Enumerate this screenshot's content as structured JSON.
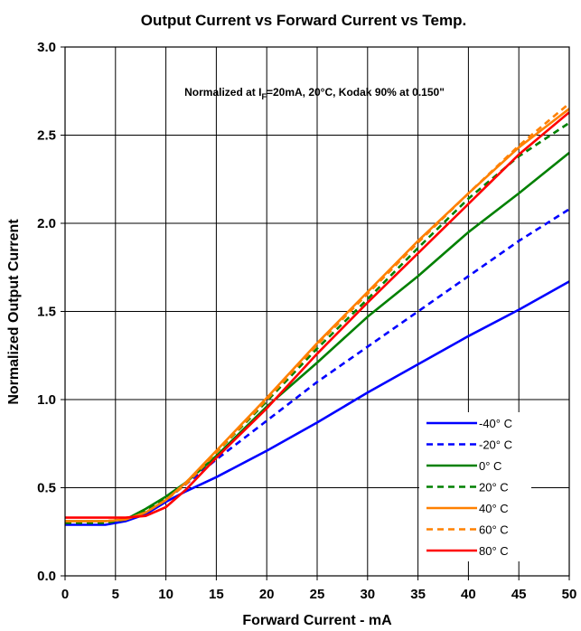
{
  "chart_data": {
    "type": "line",
    "title": "Output Current vs Forward Current vs Temp.",
    "xlabel": "Forward Current - mA",
    "ylabel": "Normalized Output Current",
    "xlim": [
      0,
      50
    ],
    "ylim": [
      0,
      3.0
    ],
    "x_ticks": [
      "0",
      "5",
      "10",
      "15",
      "20",
      "25",
      "30",
      "35",
      "40",
      "45",
      "50"
    ],
    "y_ticks": [
      "0.0",
      "0.5",
      "1.0",
      "1.5",
      "2.0",
      "2.5",
      "3.0"
    ],
    "grid": true,
    "legend_position": "bottom-right",
    "annotation": {
      "prefix": "Normalized at I",
      "subscript": "F",
      "suffix": "=20mA, 20°C, Kodak 90% at 0.150\""
    },
    "series": [
      {
        "name": "-40° C",
        "color": "#0000ff",
        "dash": "solid",
        "x": [
          0,
          2,
          4,
          6,
          8,
          10,
          12,
          15,
          20,
          25,
          30,
          35,
          40,
          45,
          50
        ],
        "y": [
          0.29,
          0.29,
          0.29,
          0.31,
          0.35,
          0.42,
          0.48,
          0.56,
          0.71,
          0.87,
          1.04,
          1.2,
          1.36,
          1.51,
          1.67
        ]
      },
      {
        "name": "-20° C",
        "color": "#0000ff",
        "dash": "dashed",
        "x": [
          0,
          2,
          4,
          6,
          8,
          10,
          12,
          15,
          20,
          25,
          30,
          35,
          40,
          45,
          50
        ],
        "y": [
          0.3,
          0.3,
          0.3,
          0.31,
          0.36,
          0.43,
          0.52,
          0.66,
          0.88,
          1.1,
          1.3,
          1.5,
          1.7,
          1.9,
          2.08
        ]
      },
      {
        "name": "0° C",
        "color": "#008000",
        "dash": "solid",
        "x": [
          0,
          2,
          4,
          6,
          8,
          10,
          12,
          15,
          20,
          25,
          30,
          35,
          40,
          45,
          50
        ],
        "y": [
          0.31,
          0.31,
          0.31,
          0.32,
          0.38,
          0.45,
          0.53,
          0.68,
          0.96,
          1.21,
          1.47,
          1.7,
          1.95,
          2.17,
          2.4
        ]
      },
      {
        "name": "20° C",
        "color": "#008000",
        "dash": "dashed",
        "x": [
          0,
          2,
          4,
          6,
          8,
          10,
          12,
          15,
          20,
          25,
          30,
          35,
          40,
          45,
          50
        ],
        "y": [
          0.3,
          0.3,
          0.3,
          0.32,
          0.37,
          0.44,
          0.53,
          0.7,
          0.99,
          1.29,
          1.57,
          1.86,
          2.14,
          2.38,
          2.57
        ]
      },
      {
        "name": "40° C",
        "color": "#ff8000",
        "dash": "solid",
        "x": [
          0,
          2,
          4,
          6,
          8,
          10,
          12,
          15,
          20,
          25,
          30,
          35,
          40,
          45,
          50
        ],
        "y": [
          0.31,
          0.31,
          0.31,
          0.32,
          0.36,
          0.43,
          0.53,
          0.71,
          1.01,
          1.32,
          1.61,
          1.9,
          2.17,
          2.43,
          2.65
        ]
      },
      {
        "name": "60° C",
        "color": "#ff8000",
        "dash": "dashed",
        "x": [
          0,
          2,
          4,
          6,
          8,
          10,
          12,
          15,
          20,
          25,
          30,
          35,
          40,
          45,
          50
        ],
        "y": [
          0.31,
          0.31,
          0.31,
          0.32,
          0.36,
          0.43,
          0.52,
          0.7,
          1.0,
          1.31,
          1.6,
          1.89,
          2.17,
          2.44,
          2.68
        ]
      },
      {
        "name": "80° C",
        "color": "#ff0000",
        "dash": "solid",
        "x": [
          0,
          2,
          4,
          6,
          8,
          10,
          12,
          15,
          20,
          25,
          30,
          35,
          40,
          45,
          50
        ],
        "y": [
          0.33,
          0.33,
          0.33,
          0.33,
          0.34,
          0.39,
          0.49,
          0.67,
          0.95,
          1.26,
          1.55,
          1.83,
          2.11,
          2.39,
          2.63
        ]
      }
    ]
  }
}
